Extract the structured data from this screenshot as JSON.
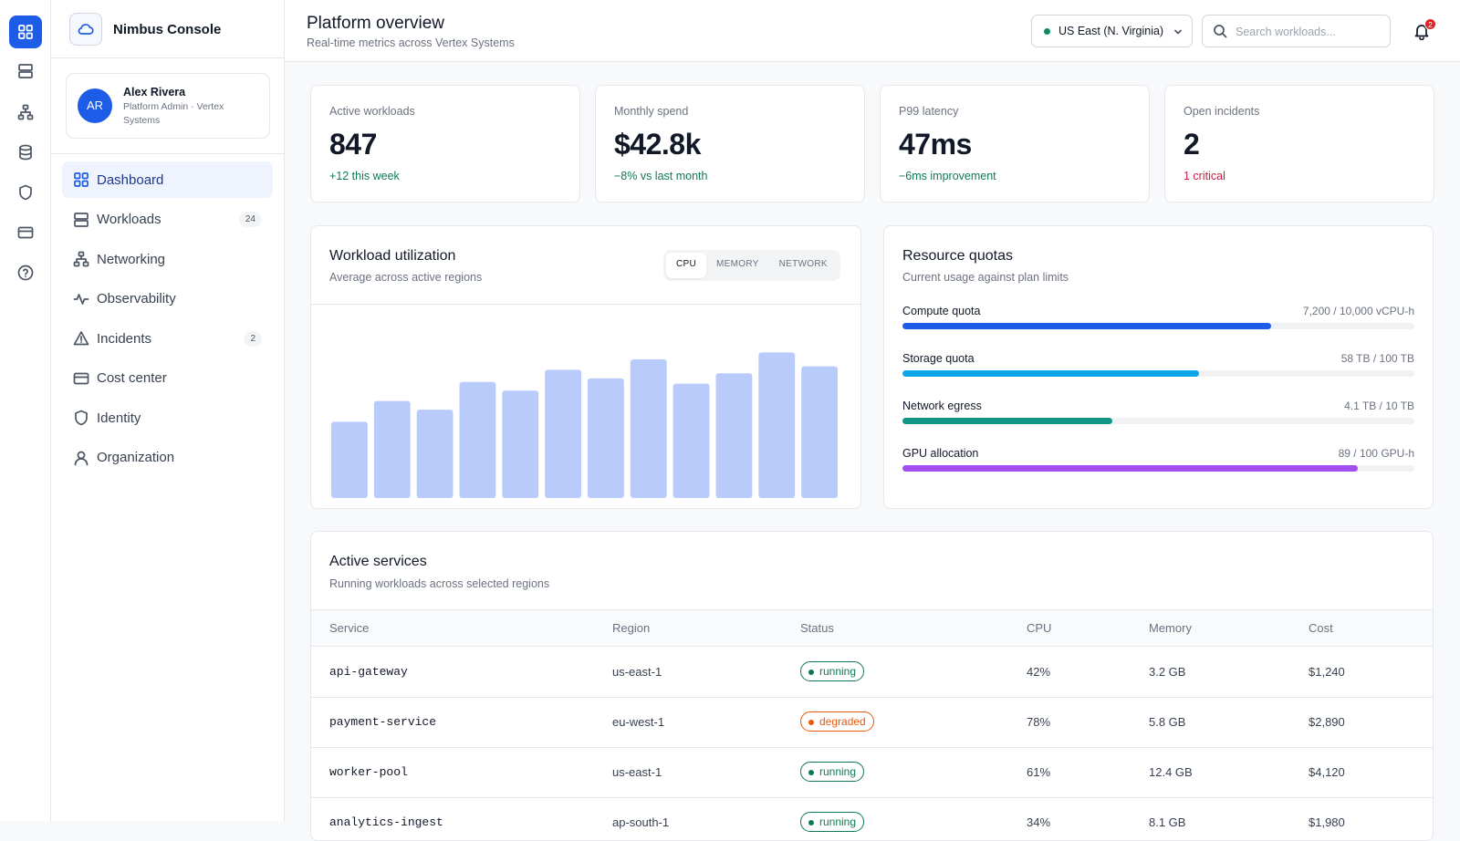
{
  "app": {
    "name": "Nimbus Console"
  },
  "user": {
    "initials": "AR",
    "name": "Alex Rivera",
    "role": "Platform Admin · Vertex Systems"
  },
  "nav": [
    {
      "label": "Dashboard",
      "active": true
    },
    {
      "label": "Workloads",
      "badge": 24
    },
    {
      "label": "Networking"
    },
    {
      "label": "Observability"
    },
    {
      "label": "Incidents",
      "badge": 2
    },
    {
      "label": "Cost center"
    },
    {
      "label": "Identity"
    },
    {
      "label": "Organization"
    }
  ],
  "header": {
    "title": "Platform overview",
    "subtitle": "Real-time metrics across Vertex Systems",
    "region": "US East (N. Virginia)",
    "search_placeholder": "Search workloads...",
    "notifications": 2
  },
  "stats": [
    {
      "label": "Active workloads",
      "value": "847",
      "delta": "+12 this week",
      "tone": "positive"
    },
    {
      "label": "Monthly spend",
      "value": "$42.8k",
      "delta": "−8% vs last month",
      "tone": "positive"
    },
    {
      "label": "P99 latency",
      "value": "47ms",
      "delta": "−6ms improvement",
      "tone": "positive"
    },
    {
      "label": "Open incidents",
      "value": "2",
      "delta": "1 critical",
      "tone": "negative"
    }
  ],
  "utilization": {
    "title": "Workload utilization",
    "subtitle": "Average across active regions",
    "tabs": [
      "CPU",
      "MEMORY",
      "NETWORK"
    ],
    "active_tab": 0,
    "values": [
      44,
      56,
      51,
      67,
      62,
      74,
      69,
      80,
      66,
      72,
      84,
      76
    ],
    "ylim": [
      0,
      100
    ],
    "color": "#b8cbfa"
  },
  "quotas": {
    "title": "Resource quotas",
    "subtitle": "Current usage against plan limits",
    "items": [
      {
        "name": "Compute quota",
        "used": 7200,
        "limit": 10000,
        "label": "7,200 / 10,000 vCPU-h",
        "color": "#1d5ce6"
      },
      {
        "name": "Storage quota",
        "used": 58,
        "limit": 100,
        "label": "58 TB / 100 TB",
        "color": "#0ea5e9"
      },
      {
        "name": "Network egress",
        "used": 4.1,
        "limit": 10,
        "label": "4.1 TB / 10 TB",
        "color": "#0f9488"
      },
      {
        "name": "GPU allocation",
        "used": 89,
        "limit": 100,
        "label": "89 / 100 GPU-h",
        "color": "#a34ef0"
      }
    ]
  },
  "services": {
    "title": "Active services",
    "subtitle": "Running workloads across selected regions",
    "columns": [
      "Service",
      "Region",
      "Status",
      "CPU",
      "Memory",
      "Cost"
    ],
    "rows": [
      [
        "api-gateway",
        "us-east-1",
        "running",
        "42%",
        "3.2 GB",
        "$1,240"
      ],
      [
        "payment-service",
        "eu-west-1",
        "degraded",
        "78%",
        "5.8 GB",
        "$2,890"
      ],
      [
        "worker-pool",
        "us-east-1",
        "running",
        "61%",
        "12.4 GB",
        "$4,120"
      ],
      [
        "analytics-ingest",
        "ap-south-1",
        "running",
        "34%",
        "8.1 GB",
        "$1,980"
      ]
    ]
  }
}
